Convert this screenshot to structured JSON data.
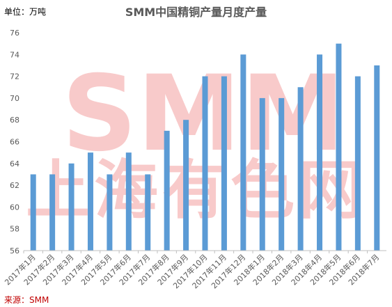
{
  "header": {
    "unit_label": "单位：万吨",
    "title": "SMM中国精铜产量月度产量"
  },
  "footer": {
    "source_label": "来源：SMM"
  },
  "watermark": {
    "latin": "SMM",
    "cjk": "上海有色网",
    "color": "#f4a6a6"
  },
  "colors": {
    "bar": "#5b9bd5",
    "axis": "#bfbfbf"
  },
  "chart_data": {
    "type": "bar",
    "title": "SMM中国精铜产量月度产量",
    "ylabel": "单位：万吨",
    "xlabel": "",
    "ylim": [
      56,
      76
    ],
    "yticks": [
      56,
      58,
      60,
      62,
      64,
      66,
      68,
      70,
      72,
      74,
      76
    ],
    "grid": false,
    "categories": [
      "2017年1月",
      "2017年2月",
      "2017年3月",
      "2017年4月",
      "2017年5月",
      "2017年6月",
      "2017年7月",
      "2017年8月",
      "2017年9月",
      "2017年10月",
      "2017年11月",
      "2017年12月",
      "2018年1月",
      "2018年2月",
      "2018年3月",
      "2018年4月",
      "2018年5月",
      "2018年6月",
      "2018年7月"
    ],
    "values": [
      63,
      63,
      64,
      65,
      63,
      65,
      63,
      67,
      68,
      72,
      72,
      74,
      70,
      70,
      71,
      74,
      75,
      72,
      73
    ]
  }
}
